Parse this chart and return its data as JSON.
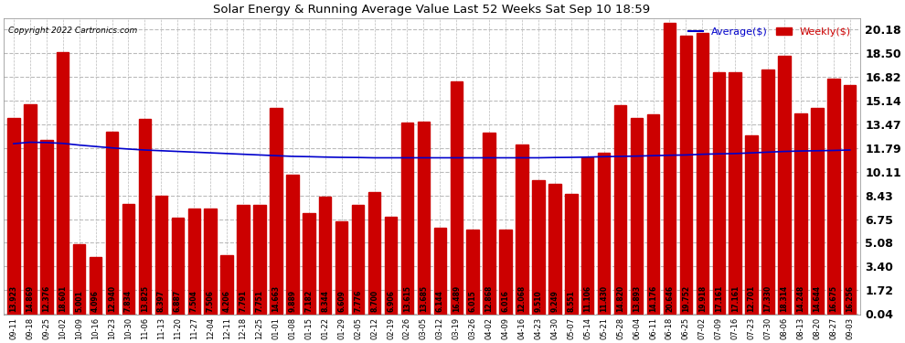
{
  "title": "Solar Energy & Running Average Value Last 52 Weeks Sat Sep 10 18:59",
  "copyright": "Copyright 2022 Cartronics.com",
  "bar_color": "#cc0000",
  "avg_line_color": "#0000cc",
  "background_color": "#ffffff",
  "plot_bg_color": "#ffffff",
  "grid_color": "#bbbbbb",
  "yticks": [
    0.04,
    1.72,
    3.4,
    5.08,
    6.75,
    8.43,
    10.11,
    11.79,
    13.47,
    15.14,
    16.82,
    18.5,
    20.18
  ],
  "categories": [
    "09-11",
    "09-18",
    "09-25",
    "10-02",
    "10-09",
    "10-16",
    "10-23",
    "10-30",
    "11-06",
    "11-13",
    "11-20",
    "11-27",
    "12-04",
    "12-11",
    "12-18",
    "12-25",
    "01-01",
    "01-08",
    "01-15",
    "01-22",
    "01-29",
    "02-05",
    "02-12",
    "02-19",
    "02-26",
    "03-05",
    "03-12",
    "03-19",
    "03-26",
    "04-02",
    "04-09",
    "04-16",
    "04-23",
    "04-30",
    "05-07",
    "05-14",
    "05-21",
    "05-28",
    "06-04",
    "06-11",
    "06-18",
    "06-25",
    "07-02",
    "07-09",
    "07-16",
    "07-23",
    "07-30",
    "08-06",
    "08-13",
    "08-20",
    "08-27",
    "09-03"
  ],
  "weekly_values": [
    13.923,
    14.869,
    12.376,
    18.601,
    5.001,
    4.096,
    12.94,
    7.834,
    13.825,
    8.397,
    6.887,
    7.504,
    7.506,
    4.206,
    7.791,
    7.751,
    14.663,
    9.889,
    7.182,
    8.344,
    6.609,
    7.776,
    8.7,
    6.906,
    13.615,
    13.685,
    6.144,
    16.489,
    6.015,
    12.868,
    6.016,
    12.068,
    9.51,
    9.249,
    8.551,
    11.106,
    11.43,
    14.82,
    13.893,
    14.176,
    20.646,
    19.752,
    19.918,
    17.161,
    17.161,
    12.701,
    17.33,
    18.314,
    14.248,
    14.644,
    16.675,
    16.256
  ],
  "avg_values": [
    12.1,
    12.2,
    12.18,
    12.12,
    12.0,
    11.9,
    11.8,
    11.72,
    11.65,
    11.6,
    11.55,
    11.5,
    11.45,
    11.4,
    11.35,
    11.3,
    11.25,
    11.2,
    11.18,
    11.15,
    11.13,
    11.12,
    11.1,
    11.1,
    11.1,
    11.1,
    11.1,
    11.1,
    11.1,
    11.1,
    11.1,
    11.1,
    11.1,
    11.12,
    11.13,
    11.15,
    11.18,
    11.2,
    11.22,
    11.25,
    11.28,
    11.3,
    11.35,
    11.38,
    11.4,
    11.45,
    11.5,
    11.55,
    11.58,
    11.6,
    11.62,
    11.65
  ],
  "legend_avg_label": "Average($)",
  "legend_weekly_label": "Weekly($)",
  "ylim_min": 0.0,
  "ylim_max": 21.0
}
